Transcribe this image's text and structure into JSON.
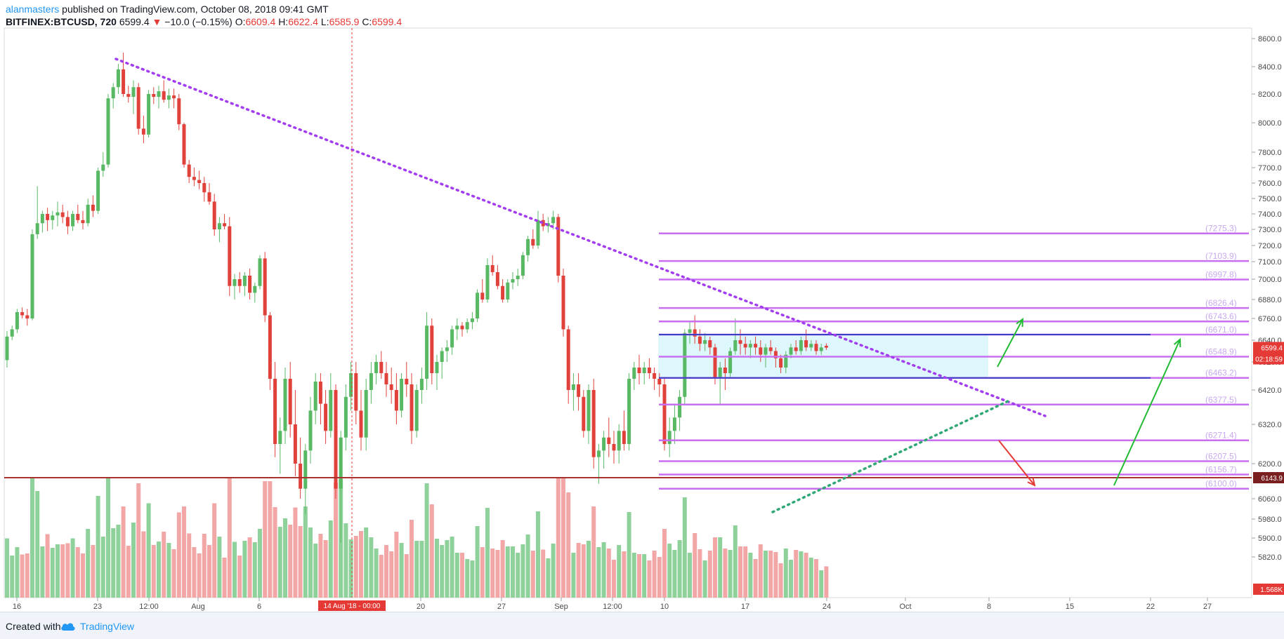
{
  "header": {
    "author": "alanmasters",
    "published": "published on TradingView.com, October 08, 2018 09:41 GMT"
  },
  "ohlc": {
    "symbol": "BITFINEX:BTCUSD, 720",
    "last": "6599.4",
    "change": "−10.0 (−0.15%)",
    "o_label": "O:",
    "o_value": "6609.4",
    "h_label": "H:",
    "h_value": "6622.4",
    "l_label": "L:",
    "l_value": "6585.9",
    "c_label": "C:",
    "c_value": "6599.4"
  },
  "footer": {
    "created_with": "Created with",
    "brand": "TradingView"
  },
  "colors": {
    "up": "#58b863",
    "down": "#e0413b",
    "vol_up": "#8fd19a",
    "vol_down": "#f2a6a6",
    "trend_down": "#a23ef0",
    "trend_up": "#2fa876",
    "level": "#c86ef0",
    "range_line": "#3b3fc4",
    "support": "#a8332e",
    "zone": "#d5f5fb",
    "arrow_up": "#22bb33",
    "arrow_down": "#e53935"
  },
  "chart_data": {
    "type": "candlestick",
    "y_ticks": [
      "8600.0",
      "8400.0",
      "8200.0",
      "8000.0",
      "7800.0",
      "7700.0",
      "7600.0",
      "7500.0",
      "7400.0",
      "7300.0",
      "7200.0",
      "7100.0",
      "7000.0",
      "6880.0",
      "6760.0",
      "6640.0",
      "6520.0",
      "6420.0",
      "6320.0",
      "6200.0",
      "6060.0",
      "5980.0",
      "5900.0",
      "5820.0"
    ],
    "x_ticks": [
      "16",
      "23",
      "12:00",
      "Aug",
      "6",
      "20",
      "27",
      "Sep",
      "12:00",
      "10",
      "17",
      "24",
      "Oct",
      "8",
      "15",
      "22",
      "27"
    ],
    "cursor_date_label": "14 Aug '18 - 00:00",
    "price_tags": {
      "last": "6599.4",
      "countdown": "02:18:59",
      "support": "6143.9",
      "volume": "1.568K"
    },
    "levels": [
      "7275.3",
      "7103.9",
      "6997.8",
      "6826.4",
      "6743.6",
      "6671.0",
      "6548.9",
      "6463.2",
      "6377.5",
      "6271.4",
      "6207.5",
      "6156.7",
      "6100.0"
    ],
    "candles": [
      [
        6530,
        6690,
        6500,
        6660
      ],
      [
        6660,
        6720,
        6640,
        6700
      ],
      [
        6700,
        6820,
        6680,
        6800
      ],
      [
        6800,
        6830,
        6760,
        6780
      ],
      [
        6780,
        6820,
        6720,
        6760
      ],
      [
        6760,
        7300,
        6750,
        7270
      ],
      [
        7270,
        7580,
        7240,
        7340
      ],
      [
        7340,
        7420,
        7280,
        7400
      ],
      [
        7400,
        7440,
        7290,
        7360
      ],
      [
        7360,
        7420,
        7300,
        7390
      ],
      [
        7390,
        7480,
        7320,
        7410
      ],
      [
        7410,
        7460,
        7340,
        7380
      ],
      [
        7380,
        7420,
        7270,
        7320
      ],
      [
        7320,
        7420,
        7290,
        7400
      ],
      [
        7400,
        7460,
        7340,
        7360
      ],
      [
        7360,
        7420,
        7300,
        7340
      ],
      [
        7340,
        7500,
        7320,
        7460
      ],
      [
        7460,
        7520,
        7380,
        7420
      ],
      [
        7420,
        7700,
        7400,
        7680
      ],
      [
        7680,
        7800,
        7640,
        7720
      ],
      [
        7720,
        8200,
        7700,
        8170
      ],
      [
        8170,
        8280,
        8100,
        8250
      ],
      [
        8250,
        8420,
        8200,
        8380
      ],
      [
        8380,
        8500,
        8180,
        8200
      ],
      [
        8200,
        8260,
        8140,
        8180
      ],
      [
        8180,
        8300,
        8060,
        8250
      ],
      [
        8250,
        8280,
        7920,
        7960
      ],
      [
        7960,
        8050,
        7860,
        7920
      ],
      [
        7920,
        8230,
        7900,
        8200
      ],
      [
        8200,
        8250,
        8130,
        8180
      ],
      [
        8180,
        8260,
        8100,
        8220
      ],
      [
        8220,
        8300,
        8140,
        8160
      ],
      [
        8160,
        8240,
        8100,
        8190
      ],
      [
        8190,
        8240,
        8100,
        8170
      ],
      [
        8170,
        8200,
        7950,
        7990
      ],
      [
        7990,
        8000,
        7700,
        7720
      ],
      [
        7720,
        7750,
        7600,
        7640
      ],
      [
        7640,
        7700,
        7580,
        7620
      ],
      [
        7620,
        7680,
        7560,
        7600
      ],
      [
        7600,
        7640,
        7480,
        7540
      ],
      [
        7540,
        7600,
        7460,
        7480
      ],
      [
        7480,
        7530,
        7260,
        7300
      ],
      [
        7300,
        7380,
        7220,
        7340
      ],
      [
        7340,
        7400,
        7300,
        7320
      ],
      [
        7320,
        7380,
        6900,
        6960
      ],
      [
        6960,
        7030,
        6880,
        7000
      ],
      [
        7000,
        7040,
        6920,
        6960
      ],
      [
        6960,
        7040,
        6900,
        7020
      ],
      [
        7020,
        7060,
        6880,
        6920
      ],
      [
        6920,
        6980,
        6860,
        6960
      ],
      [
        6960,
        7140,
        6940,
        7120
      ],
      [
        7120,
        7160,
        6740,
        6780
      ],
      [
        6780,
        6800,
        6420,
        6460
      ],
      [
        6460,
        6520,
        6220,
        6260
      ],
      [
        6260,
        6340,
        6160,
        6300
      ],
      [
        6300,
        6500,
        6260,
        6460
      ],
      [
        6460,
        6520,
        6280,
        6320
      ],
      [
        6320,
        6420,
        6150,
        6200
      ],
      [
        6200,
        6280,
        6060,
        6100
      ],
      [
        6100,
        6260,
        6000,
        6240
      ],
      [
        6240,
        6400,
        6200,
        6360
      ],
      [
        6360,
        6480,
        6320,
        6450
      ],
      [
        6450,
        6480,
        6320,
        6380
      ],
      [
        6380,
        6420,
        6260,
        6300
      ],
      [
        6300,
        6480,
        6280,
        6420
      ],
      [
        6420,
        6440,
        6060,
        6100
      ],
      [
        6100,
        6300,
        5880,
        6280
      ],
      [
        6280,
        6440,
        6240,
        6400
      ],
      [
        6400,
        6520,
        6360,
        6480
      ],
      [
        6480,
        6520,
        6320,
        6360
      ],
      [
        6360,
        6420,
        6240,
        6280
      ],
      [
        6280,
        6460,
        6240,
        6420
      ],
      [
        6420,
        6520,
        6380,
        6480
      ],
      [
        6480,
        6560,
        6440,
        6520
      ],
      [
        6520,
        6580,
        6460,
        6480
      ],
      [
        6480,
        6520,
        6400,
        6440
      ],
      [
        6440,
        6500,
        6380,
        6420
      ],
      [
        6420,
        6480,
        6320,
        6360
      ],
      [
        6360,
        6480,
        6340,
        6460
      ],
      [
        6460,
        6520,
        6400,
        6440
      ],
      [
        6440,
        6480,
        6260,
        6300
      ],
      [
        6300,
        6440,
        6280,
        6420
      ],
      [
        6420,
        6500,
        6380,
        6460
      ],
      [
        6460,
        6800,
        6420,
        6720
      ],
      [
        6720,
        6760,
        6440,
        6480
      ],
      [
        6480,
        6560,
        6420,
        6520
      ],
      [
        6520,
        6600,
        6460,
        6580
      ],
      [
        6580,
        6640,
        6520,
        6600
      ],
      [
        6600,
        6720,
        6560,
        6700
      ],
      [
        6700,
        6760,
        6640,
        6720
      ],
      [
        6720,
        6740,
        6660,
        6700
      ],
      [
        6700,
        6760,
        6680,
        6740
      ],
      [
        6740,
        6800,
        6700,
        6760
      ],
      [
        6760,
        6940,
        6740,
        6920
      ],
      [
        6920,
        7000,
        6860,
        6880
      ],
      [
        6880,
        7120,
        6860,
        7080
      ],
      [
        7080,
        7140,
        7020,
        7040
      ],
      [
        7040,
        7080,
        6940,
        6960
      ],
      [
        6960,
        7000,
        6860,
        6880
      ],
      [
        6880,
        7000,
        6860,
        6980
      ],
      [
        6980,
        7040,
        6940,
        7000
      ],
      [
        7000,
        7060,
        6960,
        7020
      ],
      [
        7020,
        7160,
        7000,
        7140
      ],
      [
        7140,
        7260,
        7100,
        7240
      ],
      [
        7240,
        7300,
        7180,
        7200
      ],
      [
        7200,
        7420,
        7180,
        7360
      ],
      [
        7360,
        7400,
        7290,
        7320
      ],
      [
        7320,
        7380,
        7280,
        7340
      ],
      [
        7340,
        7420,
        7300,
        7380
      ],
      [
        7380,
        7400,
        6980,
        7020
      ],
      [
        7020,
        7060,
        6660,
        6700
      ],
      [
        6700,
        6720,
        6380,
        6420
      ],
      [
        6420,
        6480,
        6360,
        6440
      ],
      [
        6440,
        6480,
        6360,
        6400
      ],
      [
        6400,
        6420,
        6280,
        6300
      ],
      [
        6300,
        6440,
        6260,
        6420
      ],
      [
        6420,
        6460,
        6180,
        6220
      ],
      [
        6220,
        6260,
        6120,
        6240
      ],
      [
        6240,
        6300,
        6180,
        6280
      ],
      [
        6280,
        6340,
        6220,
        6260
      ],
      [
        6260,
        6300,
        6200,
        6240
      ],
      [
        6240,
        6320,
        6200,
        6300
      ],
      [
        6300,
        6360,
        6240,
        6260
      ],
      [
        6260,
        6480,
        6240,
        6460
      ],
      [
        6460,
        6520,
        6420,
        6500
      ],
      [
        6500,
        6560,
        6440,
        6480
      ],
      [
        6480,
        6520,
        6440,
        6500
      ],
      [
        6500,
        6540,
        6460,
        6480
      ],
      [
        6480,
        6500,
        6420,
        6460
      ],
      [
        6460,
        6480,
        6400,
        6440
      ],
      [
        6440,
        6460,
        6240,
        6260
      ],
      [
        6260,
        6340,
        6220,
        6300
      ],
      [
        6300,
        6380,
        6260,
        6340
      ],
      [
        6340,
        6420,
        6300,
        6400
      ],
      [
        6400,
        6700,
        6380,
        6680
      ],
      [
        6680,
        6740,
        6620,
        6700
      ],
      [
        6700,
        6780,
        6620,
        6660
      ],
      [
        6660,
        6700,
        6580,
        6620
      ],
      [
        6620,
        6680,
        6580,
        6640
      ],
      [
        6640,
        6660,
        6560,
        6600
      ],
      [
        6600,
        6620,
        6440,
        6460
      ],
      [
        6460,
        6520,
        6380,
        6500
      ],
      [
        6500,
        6540,
        6420,
        6480
      ],
      [
        6480,
        6600,
        6460,
        6580
      ],
      [
        6580,
        6760,
        6560,
        6640
      ],
      [
        6640,
        6700,
        6560,
        6620
      ],
      [
        6620,
        6660,
        6560,
        6600
      ],
      [
        6600,
        6640,
        6540,
        6620
      ],
      [
        6620,
        6660,
        6560,
        6600
      ],
      [
        6600,
        6640,
        6520,
        6560
      ],
      [
        6560,
        6620,
        6500,
        6600
      ],
      [
        6600,
        6640,
        6560,
        6580
      ],
      [
        6580,
        6600,
        6500,
        6540
      ],
      [
        6540,
        6560,
        6480,
        6500
      ],
      [
        6500,
        6580,
        6480,
        6560
      ],
      [
        6560,
        6620,
        6540,
        6600
      ],
      [
        6600,
        6640,
        6560,
        6580
      ],
      [
        6580,
        6660,
        6560,
        6640
      ],
      [
        6640,
        6700,
        6580,
        6600
      ],
      [
        6600,
        6640,
        6580,
        6620
      ],
      [
        6620,
        6640,
        6560,
        6580
      ],
      [
        6580,
        6620,
        6560,
        6600
      ],
      [
        6609,
        6622,
        6586,
        6599
      ]
    ]
  }
}
